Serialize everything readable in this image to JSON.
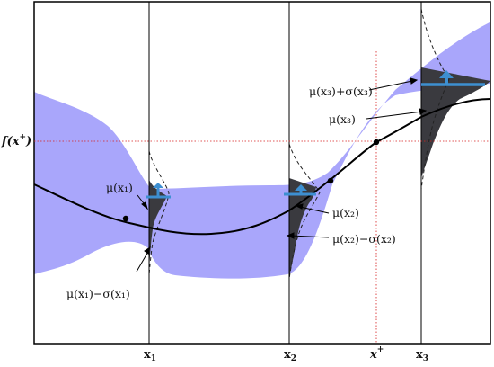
{
  "figure": {
    "description_free": true,
    "colors": {
      "uncertainty_band": "#a9a6fb",
      "mean_line": "#000000",
      "likelihood_fill": "#3a3a3f",
      "improvement_arrow": "#3d8fd1",
      "best_marker": "#d62020"
    },
    "y_axis_label": {
      "main": "f(x",
      "sup": "+",
      "close": ")"
    },
    "x_ticks": [
      {
        "main": "x",
        "sub": "1",
        "bold": true
      },
      {
        "main": "x",
        "sub": "2",
        "bold": true
      },
      {
        "main": "x",
        "sup": "+",
        "bold": false
      },
      {
        "main": "x",
        "sub": "3",
        "bold": true
      }
    ],
    "annotations": [
      {
        "text": "μ(x₁)"
      },
      {
        "text": "μ(x₁)−σ(x₁)"
      },
      {
        "text": "μ(x₂)"
      },
      {
        "text": "μ(x₂)−σ(x₂)"
      },
      {
        "text": "μ(x₃)+σ(x₃)"
      },
      {
        "text": "μ(x₃)"
      }
    ]
  }
}
